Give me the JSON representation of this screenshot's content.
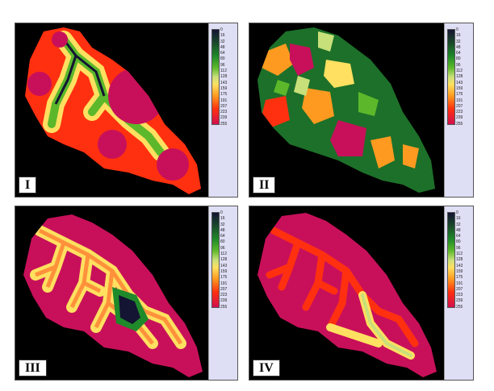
{
  "legend_ticks": [
    "0",
    "16",
    "32",
    "48",
    "64",
    "80",
    "96",
    "112",
    "128",
    "143",
    "159",
    "175",
    "191",
    "207",
    "223",
    "239",
    "255"
  ],
  "panels": [
    {
      "label": "I"
    },
    {
      "label": "II"
    },
    {
      "label": "III"
    },
    {
      "label": "IV"
    }
  ],
  "colors": {
    "background": "#000000",
    "legend_bg": "#dedef5",
    "low": "#141433",
    "green": "#1f8a2a",
    "yellow": "#ffe060",
    "orange": "#ff9a20",
    "red": "#ff3010",
    "magenta": "#c8105a"
  }
}
